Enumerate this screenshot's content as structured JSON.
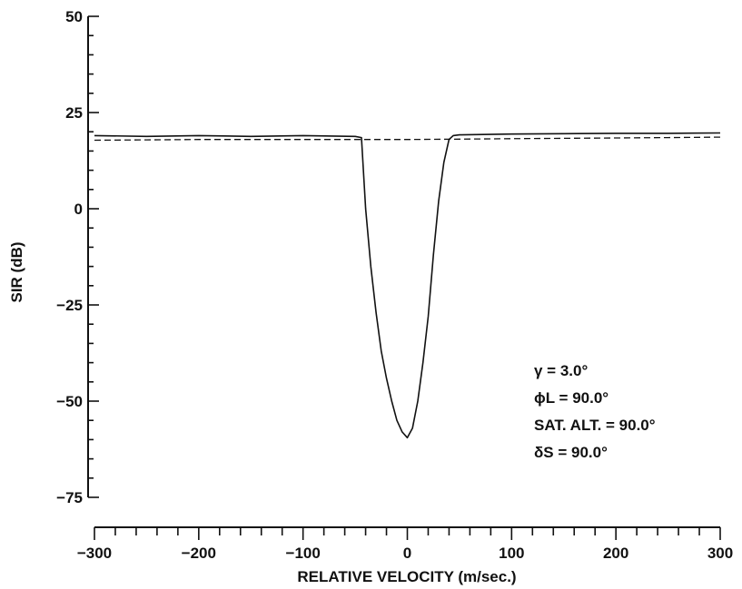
{
  "chart_data": {
    "type": "line",
    "title": "",
    "xlabel": "RELATIVE VELOCITY (m/sec.)",
    "ylabel": "SIR (dB)",
    "xlim": [
      -300,
      300
    ],
    "ylim": [
      -75,
      50
    ],
    "x_ticks": [
      -300,
      -200,
      -100,
      0,
      100,
      200,
      300
    ],
    "x_tick_labels": [
      "−300",
      "−200",
      "−100",
      "0",
      "100",
      "200",
      "300"
    ],
    "y_ticks": [
      50,
      25,
      0,
      -25,
      -50,
      -75
    ],
    "y_tick_labels": [
      "50",
      "25",
      "0",
      "−25",
      "−50",
      "−75"
    ],
    "grid": false,
    "series": [
      {
        "style": "solid",
        "x": [
          -300,
          -250,
          -200,
          -150,
          -100,
          -50,
          -44,
          -40,
          -35,
          -30,
          -25,
          -20,
          -15,
          -10,
          -5,
          0,
          5,
          10,
          15,
          20,
          25,
          30,
          35,
          40,
          44,
          50,
          100,
          150,
          200,
          250,
          300
        ],
        "y": [
          19,
          18.8,
          19,
          18.8,
          19,
          18.8,
          18.5,
          0,
          -15,
          -27,
          -37,
          -44,
          -50,
          -55,
          -58,
          -59.5,
          -57,
          -50,
          -40,
          -28,
          -12,
          2,
          12,
          18,
          19,
          19.2,
          19.4,
          19.5,
          19.6,
          19.6,
          19.7
        ]
      },
      {
        "style": "dashed",
        "x": [
          -300,
          -250,
          -200,
          -150,
          -100,
          -50,
          0,
          50,
          100,
          150,
          200,
          250,
          300
        ],
        "y": [
          17.8,
          17.9,
          18,
          18,
          18,
          18,
          18,
          18.1,
          18.2,
          18.3,
          18.4,
          18.5,
          18.6
        ]
      }
    ],
    "annotations": [
      "γ = 3.0°",
      "ϕL = 90.0°",
      "SAT. ALT. = 90.0°",
      "δS = 90.0°"
    ]
  }
}
